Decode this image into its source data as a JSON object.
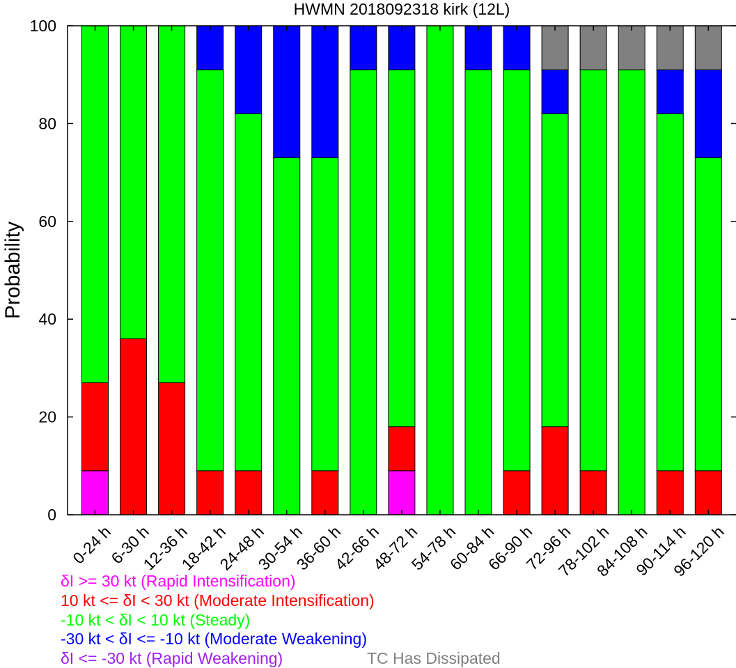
{
  "chart_data": {
    "type": "bar",
    "stacked": true,
    "title": "HWMN 2018092318 kirk (12L)",
    "xlabel": "",
    "ylabel": "Probability",
    "ylim": [
      0,
      100
    ],
    "yticks": [
      0,
      20,
      40,
      60,
      80,
      100
    ],
    "categories": [
      "0-24 h",
      "6-30 h",
      "12-36 h",
      "18-42 h",
      "24-48 h",
      "30-54 h",
      "36-60 h",
      "42-66 h",
      "48-72 h",
      "54-78 h",
      "60-84 h",
      "66-90 h",
      "72-96 h",
      "78-102 h",
      "84-108 h",
      "90-114 h",
      "96-120 h"
    ],
    "series": [
      {
        "name": "δI >= 30 kt (Rapid Intensification)",
        "color": "#ff00ff",
        "values": [
          9,
          0,
          0,
          0,
          0,
          0,
          0,
          0,
          9,
          0,
          0,
          0,
          0,
          0,
          0,
          0,
          0
        ]
      },
      {
        "name": "10 kt <= δI < 30 kt (Moderate Intensification)",
        "color": "#ff0000",
        "values": [
          18,
          36,
          27,
          9,
          9,
          0,
          9,
          0,
          9,
          0,
          0,
          9,
          18,
          9,
          0,
          9,
          9
        ]
      },
      {
        "name": "-10 kt < δI < 10 kt (Steady)",
        "color": "#00ff00",
        "values": [
          73,
          64,
          73,
          82,
          73,
          73,
          64,
          91,
          73,
          100,
          91,
          82,
          64,
          82,
          91,
          73,
          64
        ]
      },
      {
        "name": "-30 kt < δI <= -10 kt (Moderate Weakening)",
        "color": "#0000ff",
        "values": [
          0,
          0,
          0,
          9,
          18,
          27,
          27,
          9,
          9,
          0,
          9,
          9,
          9,
          0,
          0,
          9,
          18
        ]
      },
      {
        "name": "δI <= -30 kt (Rapid Weakening)",
        "color": "#a020f0",
        "values": [
          0,
          0,
          0,
          0,
          0,
          0,
          0,
          0,
          0,
          0,
          0,
          0,
          0,
          0,
          0,
          0,
          0
        ]
      },
      {
        "name": "TC Has Dissipated",
        "color": "#808080",
        "values": [
          0,
          0,
          0,
          0,
          0,
          0,
          0,
          0,
          0,
          0,
          0,
          0,
          9,
          9,
          9,
          9,
          9
        ]
      }
    ],
    "legend": {
      "placement": "bottom-left",
      "lines": [
        {
          "text": "δI >= 30 kt (Rapid Intensification)",
          "color": "#ff00ff"
        },
        {
          "text": "10 kt <= δI < 30 kt (Moderate Intensification)",
          "color": "#ff0000"
        },
        {
          "text": "-10 kt < δI < 10 kt (Steady)",
          "color": "#00ff00"
        },
        {
          "text": "-30 kt < δI <= -10 kt (Moderate Weakening)",
          "color": "#0000ff"
        },
        {
          "text": "δI <= -30 kt (Rapid Weakening)",
          "color": "#a020f0"
        },
        {
          "text": "TC Has Dissipated",
          "color": "#808080"
        }
      ]
    },
    "grid": false
  }
}
